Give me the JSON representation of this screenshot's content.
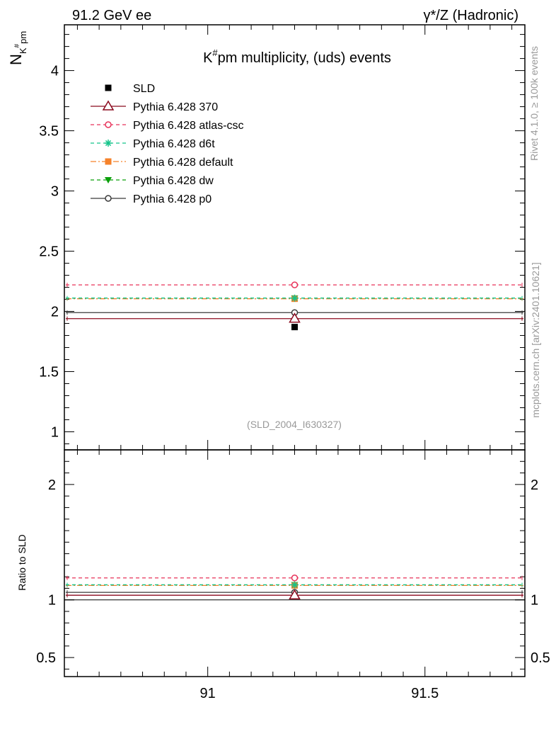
{
  "header": {
    "energy_label": "91.2 GeV ee",
    "process_label": "γ*/Z (Hadronic)"
  },
  "side_labels": {
    "rivet": "Rivet 4.1.0, ≥ 100k events",
    "mcplots": "mcplots.cern.ch [arXiv:2401.10621]"
  },
  "colors": {
    "SLD": "#000000",
    "Pythia 6.428 370": "#8b0a1e",
    "Pythia 6.428 atlas-csc": "#e8335a",
    "Pythia 6.428 d6t": "#14c48a",
    "Pythia 6.428 default": "#f5822a",
    "Pythia 6.428 dw": "#0aa00a",
    "Pythia 6.428 p0": "#3a3a3a"
  },
  "chart_data": [
    {
      "type": "scatter",
      "panel": "main",
      "title_prefix": "K",
      "title_sup": "#",
      "title_suffix": "pm multiplicity, (uds) events",
      "ylabel_main": "N",
      "ylabel_sub": "K",
      "ylabel_subsup": "#",
      "ylabel_subtail": "pm",
      "xlim": [
        90.67,
        91.73
      ],
      "ylim": [
        0.85,
        4.38
      ],
      "yticks": [
        {
          "value": 1,
          "label": "1"
        },
        {
          "value": 1.5,
          "label": "1.5"
        },
        {
          "value": 2,
          "label": "2"
        },
        {
          "value": 2.5,
          "label": "2.5"
        },
        {
          "value": 3,
          "label": "3"
        },
        {
          "value": 3.5,
          "label": "3.5"
        },
        {
          "value": 4,
          "label": "4"
        }
      ],
      "annotation": "(SLD_2004_I630327)",
      "series": [
        {
          "name": "SLD",
          "x": 91.2,
          "y": 1.87,
          "marker": "square",
          "line": "none"
        },
        {
          "name": "Pythia 6.428 370",
          "x": 91.2,
          "y": 1.94,
          "marker": "triangle-open",
          "line": "solid"
        },
        {
          "name": "Pythia 6.428 atlas-csc",
          "x": 91.2,
          "y": 2.22,
          "marker": "circle-open",
          "line": "dashed"
        },
        {
          "name": "Pythia 6.428 d6t",
          "x": 91.2,
          "y": 2.11,
          "marker": "star",
          "line": "dashed"
        },
        {
          "name": "Pythia 6.428 default",
          "x": 91.2,
          "y": 2.105,
          "marker": "square",
          "line": "dashdot"
        },
        {
          "name": "Pythia 6.428 dw",
          "x": 91.2,
          "y": 2.11,
          "marker": "triangle-down",
          "line": "dashed"
        },
        {
          "name": "Pythia 6.428 p0",
          "x": 91.2,
          "y": 1.99,
          "marker": "circle-open",
          "line": "solid"
        }
      ]
    },
    {
      "type": "scatter",
      "panel": "ratio",
      "ylabel": "Ratio to SLD",
      "xlim": [
        90.67,
        91.73
      ],
      "ylim": [
        0.335,
        2.3
      ],
      "xticks": [
        {
          "value": 91,
          "label": "91"
        },
        {
          "value": 91.5,
          "label": "91.5"
        }
      ],
      "yticks": [
        {
          "value": 0.5,
          "label": "0.5"
        },
        {
          "value": 1,
          "label": "1"
        },
        {
          "value": 2,
          "label": "2"
        }
      ],
      "series": [
        {
          "name": "Pythia 6.428 370",
          "x": 91.2,
          "y": 1.04
        },
        {
          "name": "Pythia 6.428 atlas-csc",
          "x": 91.2,
          "y": 1.19
        },
        {
          "name": "Pythia 6.428 d6t",
          "x": 91.2,
          "y": 1.13
        },
        {
          "name": "Pythia 6.428 default",
          "x": 91.2,
          "y": 1.125
        },
        {
          "name": "Pythia 6.428 dw",
          "x": 91.2,
          "y": 1.13
        },
        {
          "name": "Pythia 6.428 p0",
          "x": 91.2,
          "y": 1.065
        }
      ]
    }
  ]
}
